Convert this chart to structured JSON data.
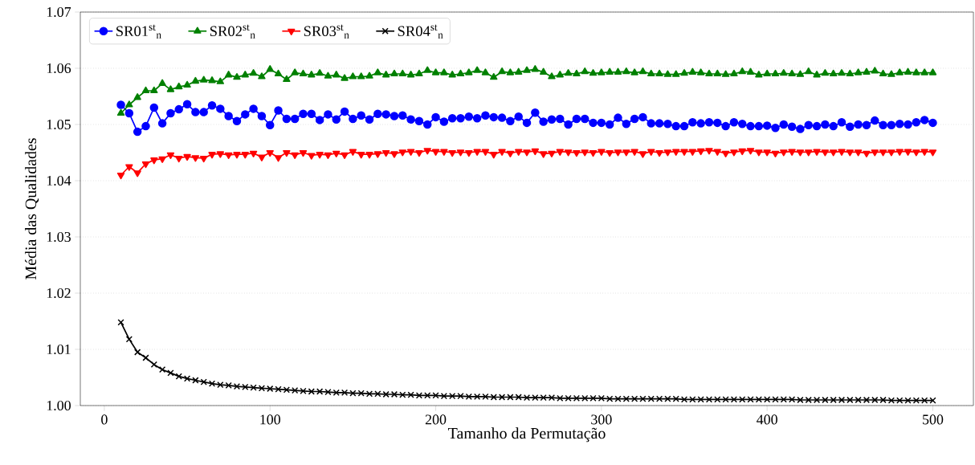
{
  "chart_data": {
    "type": "line",
    "xlabel": "Tamanho da Permutação",
    "ylabel": "Média das Qualidades",
    "x": [
      10,
      15,
      20,
      25,
      30,
      35,
      40,
      45,
      50,
      55,
      60,
      65,
      70,
      75,
      80,
      85,
      90,
      95,
      100,
      105,
      110,
      115,
      120,
      125,
      130,
      135,
      140,
      145,
      150,
      155,
      160,
      165,
      170,
      175,
      180,
      185,
      190,
      195,
      200,
      205,
      210,
      215,
      220,
      225,
      230,
      235,
      240,
      245,
      250,
      255,
      260,
      265,
      270,
      275,
      280,
      285,
      290,
      295,
      300,
      305,
      310,
      315,
      320,
      325,
      330,
      335,
      340,
      345,
      350,
      355,
      360,
      365,
      370,
      375,
      380,
      385,
      390,
      395,
      400,
      405,
      410,
      415,
      420,
      425,
      430,
      435,
      440,
      445,
      450,
      455,
      460,
      465,
      470,
      475,
      480,
      485,
      490,
      495,
      500
    ],
    "series": [
      {
        "name": "SR01$^{st}$$_{n}$",
        "color": "#0000ff",
        "marker": "circle",
        "values": [
          1.0535,
          1.052,
          1.0487,
          1.0497,
          1.053,
          1.0502,
          1.052,
          1.0527,
          1.0536,
          1.0522,
          1.0522,
          1.0534,
          1.0528,
          1.0515,
          1.0506,
          1.0518,
          1.0528,
          1.0515,
          1.0499,
          1.0525,
          1.051,
          1.051,
          1.0519,
          1.0519,
          1.0508,
          1.0518,
          1.0509,
          1.0523,
          1.051,
          1.0516,
          1.0509,
          1.0519,
          1.0518,
          1.0515,
          1.0516,
          1.0509,
          1.0506,
          1.05,
          1.0513,
          1.0505,
          1.0511,
          1.0511,
          1.0514,
          1.0511,
          1.0516,
          1.0513,
          1.0512,
          1.0506,
          1.0514,
          1.0503,
          1.0521,
          1.0505,
          1.0509,
          1.051,
          1.05,
          1.051,
          1.051,
          1.0503,
          1.0503,
          1.05,
          1.0512,
          1.0501,
          1.051,
          1.0513,
          1.0502,
          1.0502,
          1.0501,
          1.0497,
          1.0497,
          1.0504,
          1.0502,
          1.0504,
          1.0503,
          1.0497,
          1.0504,
          1.0501,
          1.0497,
          1.0497,
          1.0498,
          1.0494,
          1.05,
          1.0496,
          1.0492,
          1.0499,
          1.0497,
          1.05,
          1.0497,
          1.0504,
          1.0496,
          1.05,
          1.0499,
          1.0507,
          1.0499,
          1.0499,
          1.0501,
          1.05,
          1.0504,
          1.0508,
          1.0503
        ]
      },
      {
        "name": "SR02$^{st}$$_{n}$",
        "color": "#008000",
        "marker": "triangle",
        "values": [
          1.052,
          1.0535,
          1.0548,
          1.056,
          1.056,
          1.0573,
          1.0562,
          1.0567,
          1.057,
          1.0577,
          1.0579,
          1.0578,
          1.0576,
          1.0588,
          1.0584,
          1.0588,
          1.0591,
          1.0585,
          1.0598,
          1.059,
          1.058,
          1.0592,
          1.059,
          1.0588,
          1.0591,
          1.0586,
          1.0588,
          1.0582,
          1.0585,
          1.0585,
          1.0586,
          1.0592,
          1.0588,
          1.059,
          1.059,
          1.0588,
          1.059,
          1.0596,
          1.0592,
          1.0592,
          1.0588,
          1.059,
          1.0592,
          1.0596,
          1.0592,
          1.0584,
          1.0594,
          1.0592,
          1.0593,
          1.0596,
          1.0598,
          1.0593,
          1.0585,
          1.0588,
          1.0591,
          1.059,
          1.0594,
          1.0591,
          1.0592,
          1.0593,
          1.0593,
          1.0594,
          1.0592,
          1.0594,
          1.059,
          1.059,
          1.0589,
          1.0589,
          1.0591,
          1.0593,
          1.0592,
          1.059,
          1.059,
          1.0589,
          1.059,
          1.0594,
          1.0593,
          1.0588,
          1.059,
          1.059,
          1.0591,
          1.059,
          1.0589,
          1.0594,
          1.0588,
          1.0591,
          1.059,
          1.0591,
          1.059,
          1.0592,
          1.0593,
          1.0595,
          1.059,
          1.0589,
          1.0592,
          1.0593,
          1.0592,
          1.0592,
          1.0592
        ]
      },
      {
        "name": "SR03$^{st}$$_{n}$",
        "color": "#ff0000",
        "marker": "triangle_down",
        "values": [
          1.041,
          1.0425,
          1.0414,
          1.043,
          1.0437,
          1.0439,
          1.0446,
          1.044,
          1.0443,
          1.0441,
          1.044,
          1.0447,
          1.0448,
          1.0446,
          1.0447,
          1.0447,
          1.0449,
          1.0442,
          1.045,
          1.0441,
          1.045,
          1.0446,
          1.045,
          1.0445,
          1.0447,
          1.0446,
          1.0449,
          1.0446,
          1.0452,
          1.0447,
          1.0447,
          1.0448,
          1.045,
          1.0448,
          1.0451,
          1.0452,
          1.045,
          1.0454,
          1.0452,
          1.0452,
          1.045,
          1.0451,
          1.045,
          1.0452,
          1.0452,
          1.0447,
          1.0452,
          1.0449,
          1.0452,
          1.0451,
          1.0453,
          1.0448,
          1.0449,
          1.0452,
          1.0451,
          1.045,
          1.0451,
          1.045,
          1.0452,
          1.045,
          1.0451,
          1.0451,
          1.0452,
          1.0448,
          1.0452,
          1.045,
          1.0451,
          1.0452,
          1.0452,
          1.0452,
          1.0453,
          1.0454,
          1.0452,
          1.0449,
          1.0451,
          1.0453,
          1.0454,
          1.0451,
          1.0451,
          1.0449,
          1.0451,
          1.0452,
          1.0451,
          1.0451,
          1.0452,
          1.0451,
          1.0451,
          1.0452,
          1.0451,
          1.0451,
          1.0449,
          1.0451,
          1.0451,
          1.0451,
          1.0452,
          1.0452,
          1.0451,
          1.0452,
          1.0451
        ]
      },
      {
        "name": "SR04$^{st}$$_{n}$",
        "color": "#000000",
        "marker": "cross",
        "values": [
          1.0148,
          1.0118,
          1.0095,
          1.0085,
          1.0073,
          1.0064,
          1.0058,
          1.0052,
          1.0048,
          1.0045,
          1.0042,
          1.0039,
          1.0037,
          1.0036,
          1.0034,
          1.0033,
          1.0032,
          1.0031,
          1.003,
          1.0029,
          1.0028,
          1.0027,
          1.0026,
          1.0025,
          1.0025,
          1.0024,
          1.0023,
          1.0023,
          1.0022,
          1.0022,
          1.0021,
          1.0021,
          1.002,
          1.002,
          1.0019,
          1.0019,
          1.0018,
          1.0018,
          1.0018,
          1.0017,
          1.0017,
          1.0017,
          1.0016,
          1.0016,
          1.0016,
          1.0015,
          1.0015,
          1.0015,
          1.0015,
          1.0014,
          1.0014,
          1.0014,
          1.0014,
          1.0013,
          1.0013,
          1.0013,
          1.0013,
          1.0013,
          1.0013,
          1.0012,
          1.0012,
          1.0012,
          1.0012,
          1.0012,
          1.0012,
          1.0012,
          1.0012,
          1.0012,
          1.0011,
          1.0011,
          1.0011,
          1.0011,
          1.0011,
          1.0011,
          1.0011,
          1.0011,
          1.0011,
          1.0011,
          1.0011,
          1.0011,
          1.0011,
          1.0011,
          1.001,
          1.001,
          1.001,
          1.001,
          1.001,
          1.001,
          1.001,
          1.001,
          1.001,
          1.001,
          1.001,
          1.0009,
          1.0009,
          1.0009,
          1.0009,
          1.0009,
          1.0009
        ]
      }
    ],
    "xlim": [
      -14.5,
      524.5
    ],
    "ylim": [
      1.0,
      1.07
    ],
    "xticks": [
      0,
      100,
      200,
      300,
      400,
      500
    ],
    "yticks": [
      {
        "value": 1.0,
        "label": "1.00"
      },
      {
        "value": 1.01,
        "label": "1.01"
      },
      {
        "value": 1.02,
        "label": "1.02"
      },
      {
        "value": 1.03,
        "label": "1.03"
      },
      {
        "value": 1.04,
        "label": "1.04"
      },
      {
        "value": 1.05,
        "label": "1.05"
      },
      {
        "value": 1.06,
        "label": "1.06"
      },
      {
        "value": 1.07,
        "label": "1.07"
      }
    ],
    "grid": "y",
    "legend": "top left",
    "line_style": "solid"
  }
}
